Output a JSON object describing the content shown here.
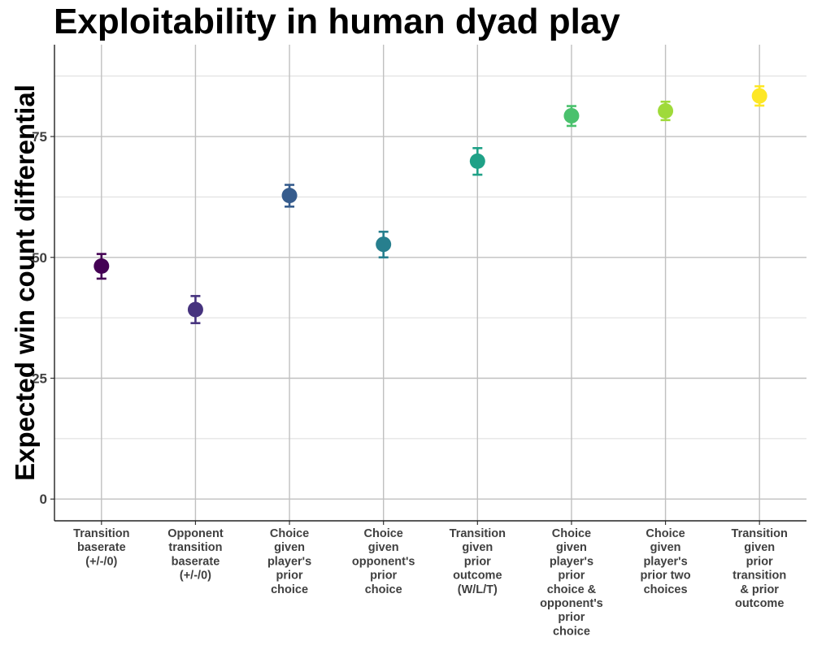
{
  "chart_data": {
    "type": "scatter",
    "title": "Exploitability in human dyad play",
    "xlabel": "",
    "ylabel": "Expected win count differential",
    "ylim": [
      -4.5,
      94
    ],
    "yticks": [
      0,
      25,
      50,
      75
    ],
    "grid": true,
    "error_bars": true,
    "categories": [
      [
        "Transition",
        "baserate",
        "(+/-/0)"
      ],
      [
        "Opponent",
        "transition",
        "baserate",
        "(+/-/0)"
      ],
      [
        "Choice",
        "given",
        "player's",
        "prior",
        "choice"
      ],
      [
        "Choice",
        "given",
        "opponent's",
        "prior",
        "choice"
      ],
      [
        "Transition",
        "given",
        "prior",
        "outcome",
        "(W/L/T)"
      ],
      [
        "Choice",
        "given",
        "player's",
        "prior",
        "choice &",
        "opponent's",
        "prior",
        "choice"
      ],
      [
        "Choice",
        "given",
        "player's",
        "prior two",
        "choices"
      ],
      [
        "Transition",
        "given",
        "prior",
        "transition",
        "& prior",
        "outcome"
      ]
    ],
    "values": [
      48.2,
      39.2,
      62.8,
      52.7,
      69.9,
      79.3,
      80.3,
      83.4
    ],
    "err_low": [
      45.6,
      36.4,
      60.5,
      50.0,
      67.1,
      77.2,
      78.4,
      81.4
    ],
    "err_high": [
      50.7,
      42.0,
      65.0,
      55.3,
      72.6,
      81.3,
      82.2,
      85.4
    ],
    "colors": [
      "#440154",
      "#46337e",
      "#365c8d",
      "#277f8e",
      "#1fa187",
      "#4ac16d",
      "#9fda3a",
      "#fde725"
    ]
  }
}
